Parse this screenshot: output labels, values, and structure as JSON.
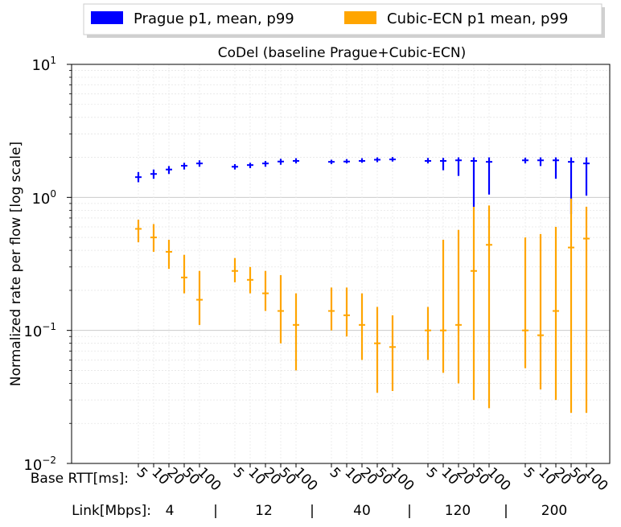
{
  "chart_data": {
    "type": "error-bar",
    "title": "CoDel (baseline Prague+Cubic-ECN)",
    "ylabel": "Normalized rate per flow [log scale]",
    "yscale": "log",
    "ylim": [
      0.01,
      10
    ],
    "ytick_labels": [
      "10−2",
      "10−1",
      "100",
      "101"
    ],
    "grid": true,
    "legend_position": "top (outside)",
    "xlabel_rtt": "Base RTT[ms]:",
    "xlabel_link": "Link[Mbps]:",
    "link_separator": "|",
    "rtt_labels": [
      "5",
      "10",
      "20",
      "50",
      "100"
    ],
    "links": [
      "4",
      "12",
      "40",
      "120",
      "200"
    ],
    "series": [
      {
        "name": "Prague p1, mean, p99",
        "color": "#0000ff",
        "points": [
          [
            1.3,
            1.42,
            1.55
          ],
          [
            1.38,
            1.5,
            1.62
          ],
          [
            1.5,
            1.62,
            1.72
          ],
          [
            1.62,
            1.73,
            1.82
          ],
          [
            1.7,
            1.8,
            1.9
          ],
          [
            1.62,
            1.7,
            1.78
          ],
          [
            1.66,
            1.75,
            1.82
          ],
          [
            1.7,
            1.8,
            1.88
          ],
          [
            1.76,
            1.86,
            1.95
          ],
          [
            1.8,
            1.88,
            1.97
          ],
          [
            1.78,
            1.85,
            1.92
          ],
          [
            1.8,
            1.86,
            1.94
          ],
          [
            1.82,
            1.88,
            1.97
          ],
          [
            1.84,
            1.92,
            2.0
          ],
          [
            1.86,
            1.93,
            2.01
          ],
          [
            1.8,
            1.88,
            1.98
          ],
          [
            1.6,
            1.88,
            1.98
          ],
          [
            1.45,
            1.9,
            2.0
          ],
          [
            0.85,
            1.88,
            2.0
          ],
          [
            1.05,
            1.85,
            2.0
          ],
          [
            1.8,
            1.9,
            1.99
          ],
          [
            1.72,
            1.9,
            2.0
          ],
          [
            1.38,
            1.9,
            2.0
          ],
          [
            0.75,
            1.85,
            2.0
          ],
          [
            1.03,
            1.8,
            2.0
          ]
        ]
      },
      {
        "name": "Cubic-ECN p1 mean, p99",
        "color": "#ffa500",
        "points": [
          [
            0.46,
            0.58,
            0.68
          ],
          [
            0.39,
            0.5,
            0.63
          ],
          [
            0.29,
            0.39,
            0.48
          ],
          [
            0.19,
            0.25,
            0.37
          ],
          [
            0.11,
            0.17,
            0.28
          ],
          [
            0.23,
            0.28,
            0.35
          ],
          [
            0.19,
            0.24,
            0.3
          ],
          [
            0.14,
            0.19,
            0.28
          ],
          [
            0.08,
            0.14,
            0.26
          ],
          [
            0.05,
            0.11,
            0.19
          ],
          [
            0.1,
            0.14,
            0.21
          ],
          [
            0.09,
            0.13,
            0.21
          ],
          [
            0.06,
            0.11,
            0.19
          ],
          [
            0.034,
            0.08,
            0.15
          ],
          [
            0.035,
            0.075,
            0.13
          ],
          [
            0.06,
            0.1,
            0.15
          ],
          [
            0.048,
            0.1,
            0.48
          ],
          [
            0.04,
            0.11,
            0.57
          ],
          [
            0.03,
            0.28,
            0.85
          ],
          [
            0.026,
            0.44,
            0.87
          ],
          [
            0.052,
            0.1,
            0.5
          ],
          [
            0.036,
            0.092,
            0.53
          ],
          [
            0.03,
            0.14,
            0.6
          ],
          [
            0.024,
            0.42,
            0.98
          ],
          [
            0.024,
            0.49,
            0.85
          ]
        ]
      }
    ]
  }
}
